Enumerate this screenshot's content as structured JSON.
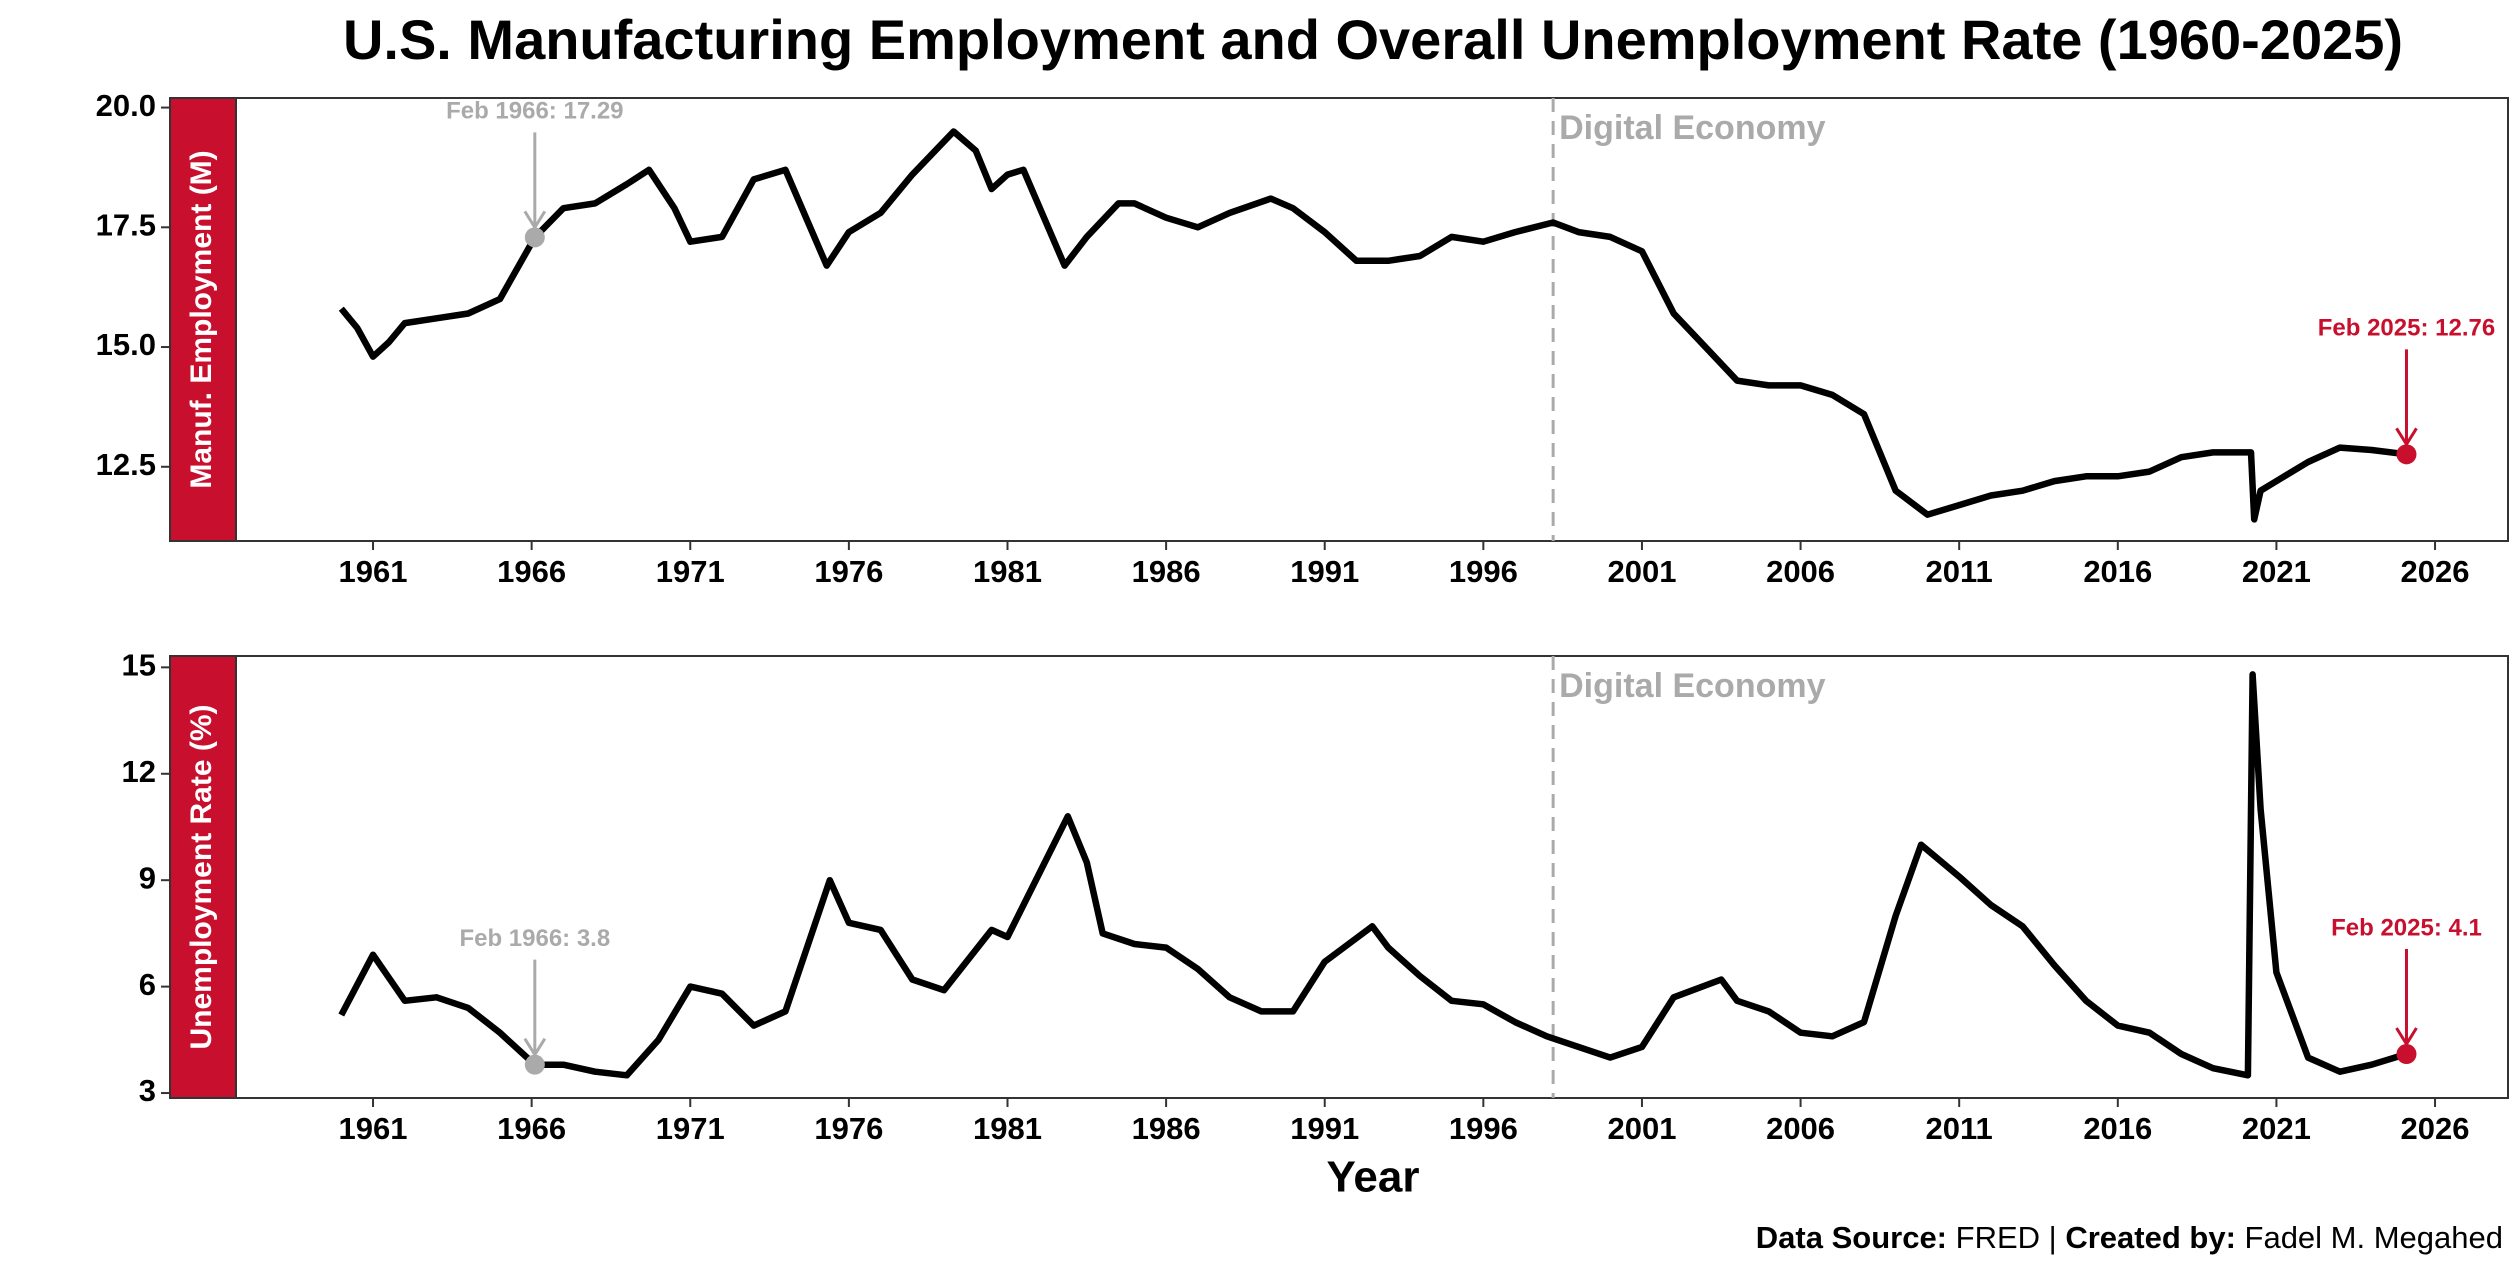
{
  "title": "U.S. Manufacturing Employment and Overall Unemployment Rate (1960-2025)",
  "x_label": "Year",
  "caption": {
    "source_label": "Data Source:",
    "source": "FRED",
    "separator": "|",
    "creator_label": "Created by:",
    "creator": "Fadel M. Megahed"
  },
  "chart_data": [
    {
      "type": "line",
      "y_label": "Manuf. Employment (M)",
      "xlim": [
        1954.6,
        2028.3
      ],
      "xticks": [
        1961,
        1966,
        1971,
        1976,
        1981,
        1986,
        1991,
        1996,
        2001,
        2006,
        2011,
        2016,
        2021,
        2026
      ],
      "ylim": [
        10.95,
        20.2
      ],
      "yticks": [
        {
          "value": 20,
          "label": "20.0"
        },
        17.5,
        {
          "value": 15,
          "label": "15.0"
        },
        12.5
      ],
      "series": [
        {
          "color": "#000000",
          "x": [
            1960,
            1960.5,
            1961,
            1961.5,
            1962,
            1963,
            1964,
            1965,
            1966.1,
            1967,
            1968,
            1969,
            1969.7,
            1970.5,
            1971,
            1972,
            1973,
            1974,
            1975.3,
            1976,
            1977,
            1978,
            1979.3,
            1980,
            1980.5,
            1981,
            1981.5,
            1982.8,
            1983.5,
            1984.5,
            1985,
            1986,
            1987,
            1988,
            1989.3,
            1990,
            1991,
            1992,
            1993,
            1994,
            1995,
            1996,
            1997,
            1998.2,
            1999,
            2000,
            2001,
            2002,
            2003,
            2004,
            2005,
            2006,
            2007,
            2008,
            2009,
            2010,
            2011,
            2012,
            2013,
            2014,
            2015,
            2016,
            2017,
            2018,
            2019,
            2020.2,
            2020.3,
            2020.5,
            2021,
            2022,
            2023,
            2024,
            2025.1
          ],
          "values": [
            15.8,
            15.4,
            14.8,
            15.1,
            15.5,
            15.6,
            15.7,
            16.0,
            17.29,
            17.9,
            18.0,
            18.4,
            18.7,
            17.9,
            17.2,
            17.3,
            18.5,
            18.7,
            16.7,
            17.4,
            17.8,
            18.6,
            19.5,
            19.1,
            18.3,
            18.6,
            18.7,
            16.7,
            17.3,
            18.0,
            18.0,
            17.7,
            17.5,
            17.8,
            18.1,
            17.9,
            17.4,
            16.8,
            16.8,
            16.9,
            17.3,
            17.2,
            17.4,
            17.6,
            17.4,
            17.3,
            17.0,
            15.7,
            15.0,
            14.3,
            14.2,
            14.2,
            14.0,
            13.6,
            12.0,
            11.5,
            11.7,
            11.9,
            12.0,
            12.2,
            12.3,
            12.3,
            12.4,
            12.7,
            12.8,
            12.8,
            11.4,
            12.0,
            12.2,
            12.6,
            12.9,
            12.85,
            12.76
          ]
        }
      ],
      "vline": {
        "x": 1998.2,
        "label": "Digital Economy",
        "color": "#aaaaaa"
      },
      "annotations": [
        {
          "text": "Feb 1966: 17.29",
          "x": 1966.1,
          "y": 17.29,
          "color": "#aaaaaa"
        },
        {
          "text": "Feb 2025: 12.76",
          "x": 2025.1,
          "y": 12.76,
          "color": "#c8102e"
        }
      ]
    },
    {
      "type": "line",
      "y_label": "Unemployment Rate (%)",
      "xlim": [
        1954.6,
        2028.3
      ],
      "xticks": [
        1961,
        1966,
        1971,
        1976,
        1981,
        1986,
        1991,
        1996,
        2001,
        2006,
        2011,
        2016,
        2021,
        2026
      ],
      "ylim": [
        2.86,
        15.32
      ],
      "yticks": [
        3,
        6,
        9,
        12,
        15
      ],
      "series": [
        {
          "color": "#000000",
          "x": [
            1960,
            1961,
            1962,
            1963,
            1964,
            1965,
            1966.1,
            1967,
            1968,
            1969,
            1970,
            1971,
            1972,
            1973,
            1974,
            1975.4,
            1976,
            1977,
            1978,
            1979,
            1980.5,
            1981,
            1982.9,
            1983.5,
            1984,
            1985,
            1986,
            1987,
            1988,
            1989,
            1990,
            1991,
            1992.5,
            1993,
            1994,
            1995,
            1996,
            1997,
            1998,
            1999,
            2000,
            2001,
            2002,
            2003.5,
            2004,
            2005,
            2006,
            2007,
            2008,
            2009,
            2009.8,
            2011,
            2012,
            2013,
            2014,
            2015,
            2016,
            2017,
            2018,
            2019,
            2020.1,
            2020.25,
            2020.5,
            2021,
            2022,
            2023,
            2024,
            2025.1
          ],
          "values": [
            5.2,
            6.9,
            5.6,
            5.7,
            5.4,
            4.7,
            3.8,
            3.8,
            3.6,
            3.5,
            4.5,
            6.0,
            5.8,
            4.9,
            5.3,
            9.0,
            7.8,
            7.6,
            6.2,
            5.9,
            7.6,
            7.4,
            10.8,
            9.5,
            7.5,
            7.2,
            7.1,
            6.5,
            5.7,
            5.3,
            5.3,
            6.7,
            7.7,
            7.1,
            6.3,
            5.6,
            5.5,
            5.0,
            4.6,
            4.3,
            4.0,
            4.3,
            5.7,
            6.2,
            5.6,
            5.3,
            4.7,
            4.6,
            5.0,
            8.0,
            10.0,
            9.1,
            8.3,
            7.7,
            6.6,
            5.6,
            4.9,
            4.7,
            4.1,
            3.7,
            3.5,
            14.8,
            11.0,
            6.4,
            4.0,
            3.6,
            3.8,
            4.1
          ]
        }
      ],
      "vline": {
        "x": 1998.2,
        "label": "Digital Economy",
        "color": "#aaaaaa"
      },
      "annotations": [
        {
          "text": "Feb 1966: 3.8",
          "x": 1966.1,
          "y": 3.8,
          "color": "#aaaaaa"
        },
        {
          "text": "Feb 2025: 4.1",
          "x": 2025.1,
          "y": 4.1,
          "color": "#c8102e"
        }
      ]
    }
  ]
}
